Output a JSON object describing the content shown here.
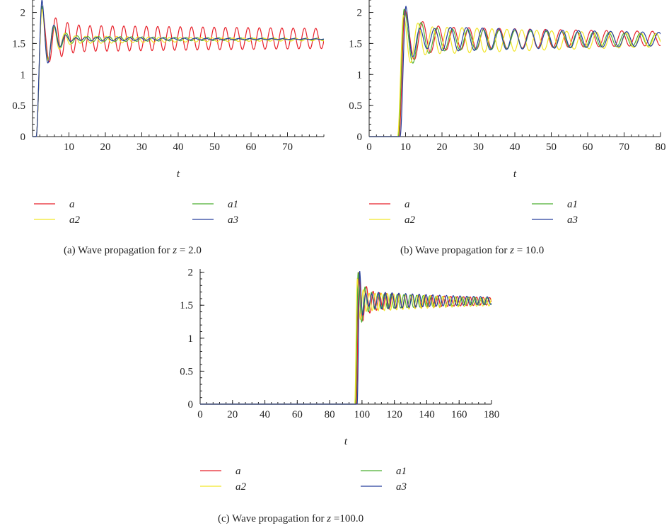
{
  "figure": {
    "panels": [
      {
        "caption_prefix": "(a)  Wave propagation for ",
        "caption_var": "z",
        "caption_suffix": " = 2.0"
      },
      {
        "caption_prefix": "(b)  Wave propagation for ",
        "caption_var": "z",
        "caption_suffix": " = 10.0"
      },
      {
        "caption_prefix": "(c)  Wave propagation for ",
        "caption_var": "z",
        "caption_suffix": " =100.0"
      }
    ]
  },
  "chart_data": [
    {
      "type": "line",
      "title": "",
      "xlabel": "t",
      "ylabel": "",
      "xlim": [
        0,
        80
      ],
      "ylim": [
        0,
        2.2
      ],
      "xticks": [
        10,
        20,
        30,
        40,
        50,
        60,
        70
      ],
      "yticks": [
        0,
        0.5,
        1,
        1.5,
        2
      ],
      "grid": false,
      "legend": "below",
      "series": [
        {
          "name": "a",
          "color": "#e8202a",
          "onset": 1.0,
          "peak": 2.1,
          "steady": 1.58,
          "amp": 0.22,
          "period": 3.1,
          "decay": 0.004,
          "phase": 0.0
        },
        {
          "name": "a1",
          "color": "#4caf32",
          "onset": 1.0,
          "peak": 2.1,
          "steady": 1.57,
          "amp": 0.06,
          "period": 3.0,
          "decay": 0.02,
          "phase": 0.5
        },
        {
          "name": "a2",
          "color": "#f2e627",
          "onset": 1.0,
          "peak": 2.05,
          "steady": 1.56,
          "amp": 0.08,
          "period": 2.9,
          "decay": 0.02,
          "phase": 1.0
        },
        {
          "name": "a3",
          "color": "#263f9c",
          "onset": 1.0,
          "peak": 2.2,
          "steady": 1.57,
          "amp": 0.05,
          "period": 3.0,
          "decay": 0.03,
          "phase": 1.6
        }
      ]
    },
    {
      "type": "line",
      "title": "",
      "xlabel": "t",
      "ylabel": "",
      "xlim": [
        0,
        80
      ],
      "ylim": [
        0,
        2.2
      ],
      "xticks": [
        0,
        10,
        20,
        30,
        40,
        50,
        60,
        70,
        80
      ],
      "yticks": [
        0,
        0.5,
        1,
        1.5,
        2
      ],
      "grid": false,
      "legend": "below",
      "series": [
        {
          "name": "a",
          "color": "#e8202a",
          "onset": 8.2,
          "peak": 2.05,
          "steady": 1.58,
          "amp": 0.2,
          "period": 4.2,
          "decay": 0.008,
          "phase": 0.4
        },
        {
          "name": "a1",
          "color": "#4caf32",
          "onset": 8.0,
          "peak": 2.05,
          "steady": 1.56,
          "amp": 0.2,
          "period": 4.3,
          "decay": 0.01,
          "phase": 1.1
        },
        {
          "name": "a2",
          "color": "#f2e627",
          "onset": 7.8,
          "peak": 1.95,
          "steady": 1.55,
          "amp": 0.25,
          "period": 4.1,
          "decay": 0.012,
          "phase": 2.0
        },
        {
          "name": "a3",
          "color": "#263f9c",
          "onset": 8.5,
          "peak": 2.1,
          "steady": 1.57,
          "amp": 0.22,
          "period": 4.4,
          "decay": 0.01,
          "phase": 3.0
        }
      ]
    },
    {
      "type": "line",
      "title": "",
      "xlabel": "t",
      "ylabel": "",
      "xlim": [
        0,
        180
      ],
      "ylim": [
        0,
        2.05
      ],
      "xticks": [
        0,
        20,
        40,
        60,
        80,
        100,
        120,
        140,
        160,
        180
      ],
      "yticks": [
        0,
        0.5,
        1,
        1.5,
        2
      ],
      "grid": false,
      "legend": "below",
      "series": [
        {
          "name": "a",
          "color": "#e8202a",
          "onset": 96.5,
          "peak": 2.0,
          "steady": 1.56,
          "amp": 0.15,
          "period": 4.0,
          "decay": 0.012,
          "phase": 0.4
        },
        {
          "name": "a1",
          "color": "#4caf32",
          "onset": 96.0,
          "peak": 2.0,
          "steady": 1.56,
          "amp": 0.14,
          "period": 4.0,
          "decay": 0.012,
          "phase": 1.2
        },
        {
          "name": "a2",
          "color": "#f2e627",
          "onset": 95.5,
          "peak": 1.9,
          "steady": 1.55,
          "amp": 0.16,
          "period": 3.8,
          "decay": 0.012,
          "phase": 2.2
        },
        {
          "name": "a3",
          "color": "#263f9c",
          "onset": 97.0,
          "peak": 2.02,
          "steady": 1.57,
          "amp": 0.15,
          "period": 4.2,
          "decay": 0.012,
          "phase": 3.1
        }
      ]
    }
  ]
}
